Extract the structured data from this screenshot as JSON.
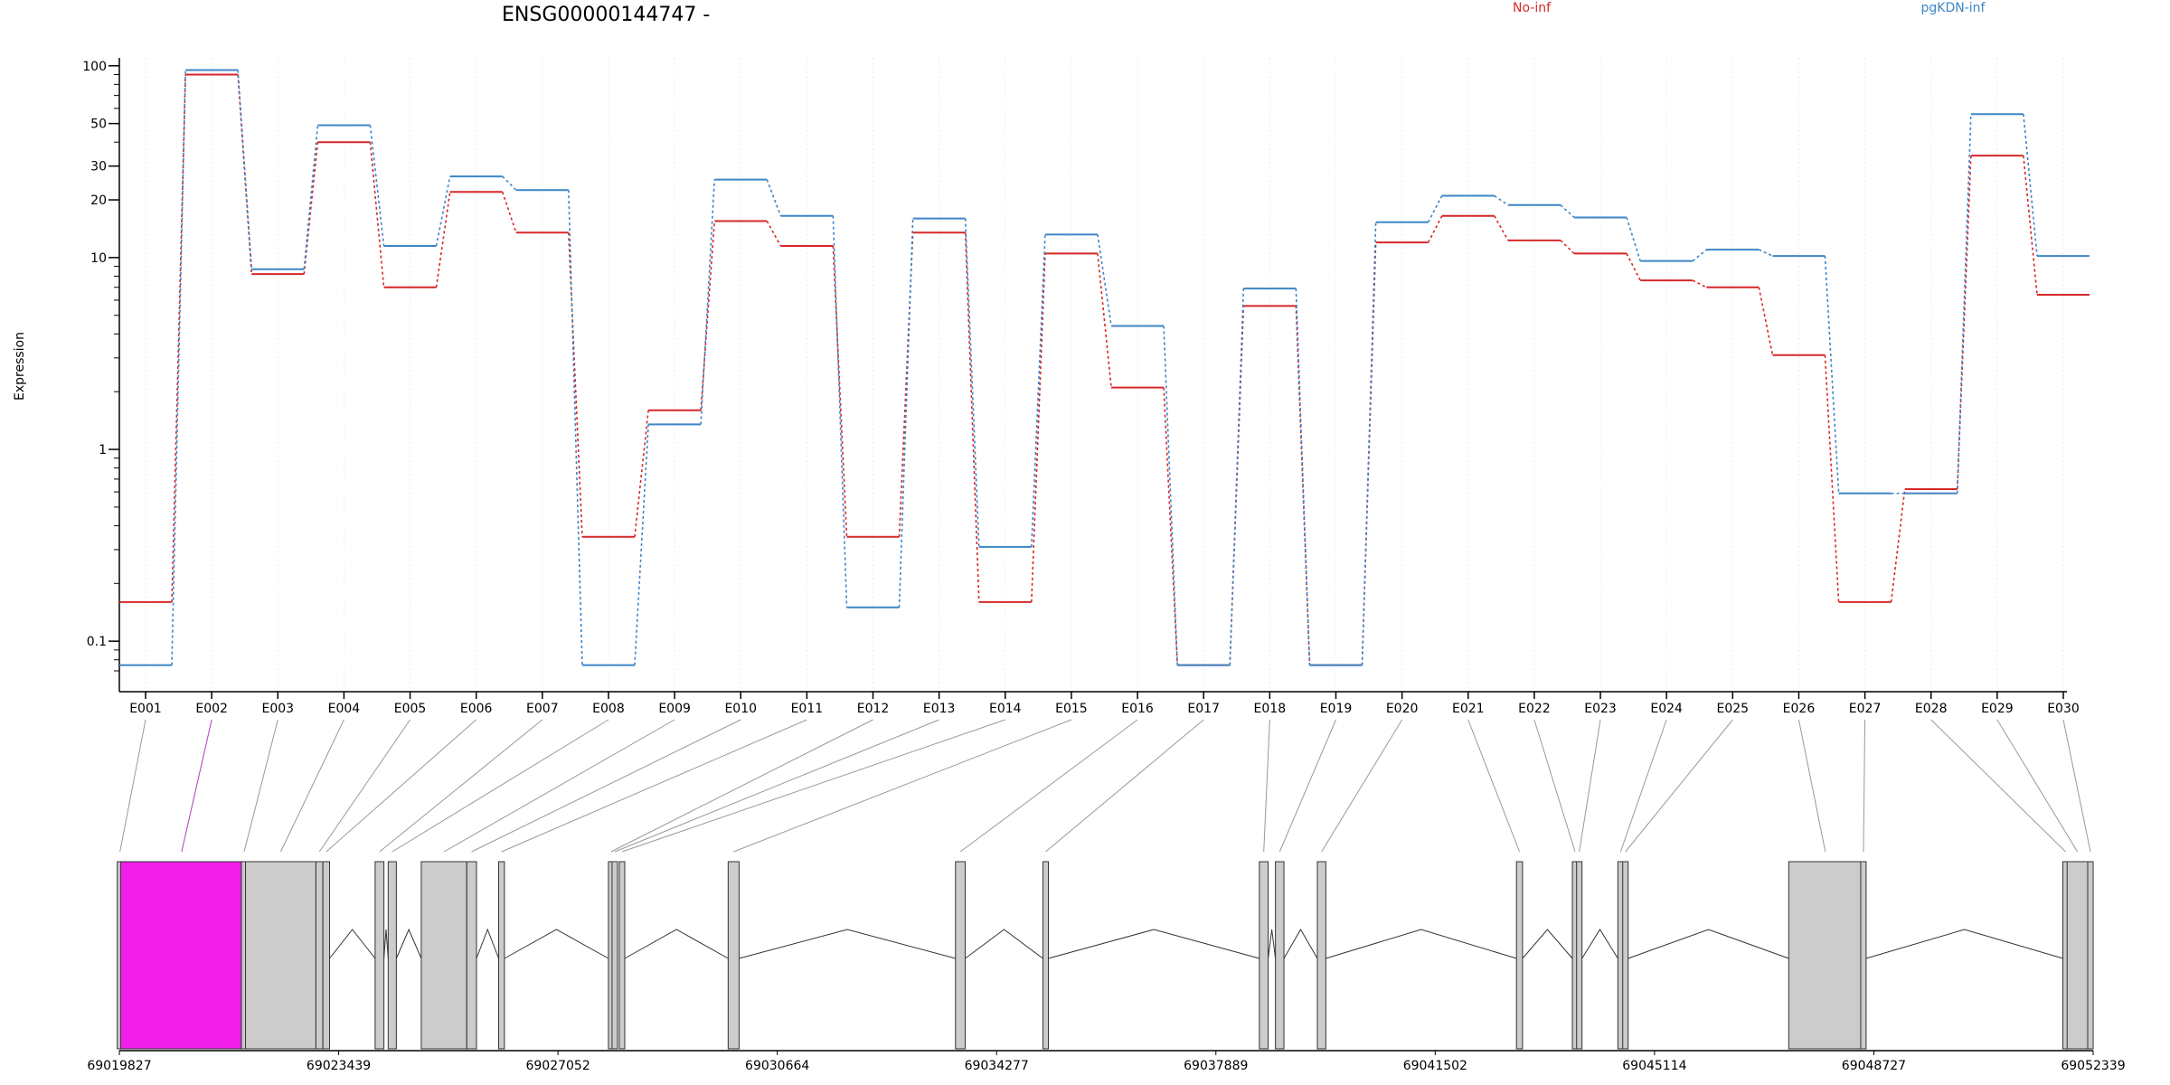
{
  "chart_data": {
    "type": "line",
    "title": "ENSG00000144747 -",
    "ylabel": "Expression",
    "y_scale": "log",
    "ylim": [
      0.07,
      110
    ],
    "y_ticks": [
      {
        "value": 100,
        "label": "100"
      },
      {
        "value": 50,
        "label": "50"
      },
      {
        "value": 30,
        "label": "30"
      },
      {
        "value": 20,
        "label": "20"
      },
      {
        "value": 10,
        "label": "10"
      },
      {
        "value": 1,
        "label": "1"
      },
      {
        "value": 0.1,
        "label": "0.1"
      }
    ],
    "categories": [
      "E001",
      "E002",
      "E003",
      "E004",
      "E005",
      "E006",
      "E007",
      "E008",
      "E009",
      "E010",
      "E011",
      "E012",
      "E013",
      "E014",
      "E015",
      "E016",
      "E017",
      "E018",
      "E019",
      "E020",
      "E021",
      "E022",
      "E023",
      "E024",
      "E025",
      "E026",
      "E027",
      "E028",
      "E029",
      "E030"
    ],
    "series": [
      {
        "name": "No-inf",
        "color": "#d62728",
        "values": [
          0.16,
          90,
          8.2,
          40,
          7,
          22,
          13.5,
          0.35,
          1.6,
          15.5,
          11.5,
          0.35,
          13.5,
          0.16,
          10.5,
          2.1,
          0.075,
          5.6,
          0.075,
          12,
          16.5,
          12.3,
          10.5,
          7.6,
          7,
          3.1,
          0.16,
          0.62,
          34,
          6.4
        ]
      },
      {
        "name": "pgKDN-inf",
        "color": "#3d85c6",
        "values": [
          0.075,
          95,
          8.7,
          49,
          11.5,
          26.5,
          22.5,
          0.075,
          1.35,
          25.5,
          16.5,
          0.15,
          16,
          0.31,
          13.2,
          4.4,
          0.075,
          6.9,
          0.075,
          15.3,
          21,
          18.8,
          16.2,
          9.6,
          11,
          10.2,
          0.59,
          0.59,
          56,
          10.2
        ]
      }
    ],
    "legend_position": "top",
    "grid": "faint vertical lines at each exon",
    "gene_model": {
      "start": 69019827,
      "end": 69052339,
      "coordinate_labels": [
        "69019827",
        "69023439",
        "69027052",
        "69030664",
        "69034277",
        "69037889",
        "69041502",
        "69045114",
        "69048727",
        "69052339"
      ],
      "highlighted_exon": "E002",
      "highlight_color": "#f01ee8",
      "exon_color": "#cccccc",
      "exons": [
        {
          "id": "E001",
          "start": 69019827,
          "end": 69019847
        },
        {
          "id": "E002",
          "start": 69019847,
          "end": 69021860
        },
        {
          "id": "E003",
          "start": 69021860,
          "end": 69021905
        },
        {
          "id": "E004",
          "start": 69021905,
          "end": 69023065
        },
        {
          "id": "E005",
          "start": 69023065,
          "end": 69023180
        },
        {
          "id": "E006",
          "start": 69023180,
          "end": 69023290
        },
        {
          "id": "E007",
          "start": 69024040,
          "end": 69024185
        },
        {
          "id": "E008",
          "start": 69024255,
          "end": 69024390
        },
        {
          "id": "E009",
          "start": 69024800,
          "end": 69025550
        },
        {
          "id": "E010",
          "start": 69025550,
          "end": 69025710
        },
        {
          "id": "E011",
          "start": 69026075,
          "end": 69026170
        },
        {
          "id": "E012",
          "start": 69027895,
          "end": 69027960
        },
        {
          "id": "E013",
          "start": 69027960,
          "end": 69028015
        },
        {
          "id": "E014",
          "start": 69028065,
          "end": 69028150
        },
        {
          "id": "E015",
          "start": 69029855,
          "end": 69030035
        },
        {
          "id": "E016",
          "start": 69033600,
          "end": 69033760
        },
        {
          "id": "E017",
          "start": 69035040,
          "end": 69035130
        },
        {
          "id": "E018",
          "start": 69038605,
          "end": 69038750
        },
        {
          "id": "E019",
          "start": 69038870,
          "end": 69039010
        },
        {
          "id": "E020",
          "start": 69039560,
          "end": 69039700
        },
        {
          "id": "E021",
          "start": 69042840,
          "end": 69042940
        },
        {
          "id": "E022",
          "start": 69043770,
          "end": 69043840
        },
        {
          "id": "E023",
          "start": 69043840,
          "end": 69043910
        },
        {
          "id": "E024",
          "start": 69044510,
          "end": 69044600
        },
        {
          "id": "E025",
          "start": 69044600,
          "end": 69044670
        },
        {
          "id": "E026",
          "start": 69047325,
          "end": 69048530
        },
        {
          "id": "E027",
          "start": 69048530,
          "end": 69048580
        },
        {
          "id": "E028",
          "start": 69051860,
          "end": 69051910
        },
        {
          "id": "E029",
          "start": 69051910,
          "end": 69052250
        },
        {
          "id": "E030",
          "start": 69052250,
          "end": 69052339
        }
      ]
    }
  }
}
